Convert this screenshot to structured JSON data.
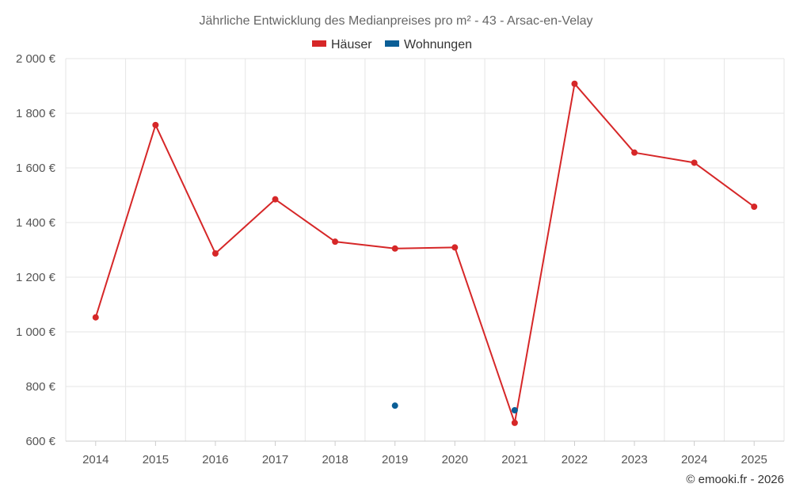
{
  "chart_data": {
    "type": "line",
    "title": "Jährliche Entwicklung des Medianpreises pro m² - 43 - Arsac-en-Velay",
    "x": [
      "2014",
      "2015",
      "2016",
      "2017",
      "2018",
      "2019",
      "2020",
      "2021",
      "2022",
      "2023",
      "2024",
      "2025"
    ],
    "ylim": [
      600,
      2000
    ],
    "yticks": [
      600,
      800,
      1000,
      1200,
      1400,
      1600,
      1800,
      2000
    ],
    "ytick_labels": [
      "600 €",
      "800 €",
      "1 000 €",
      "1 200 €",
      "1 400 €",
      "1 600 €",
      "1 800 €",
      "2 000 €"
    ],
    "grid": true,
    "legend_position": "top-center",
    "series": [
      {
        "name": "Häuser",
        "color": "#d62728",
        "values": [
          1053,
          1757,
          1287,
          1485,
          1330,
          1305,
          1309,
          667,
          1908,
          1656,
          1619,
          1458
        ]
      },
      {
        "name": "Wohnungen",
        "color": "#0b5e96",
        "values": [
          null,
          null,
          null,
          null,
          null,
          730,
          null,
          713,
          null,
          null,
          null,
          null
        ]
      }
    ]
  },
  "credit": "© emooki.fr - 2026"
}
